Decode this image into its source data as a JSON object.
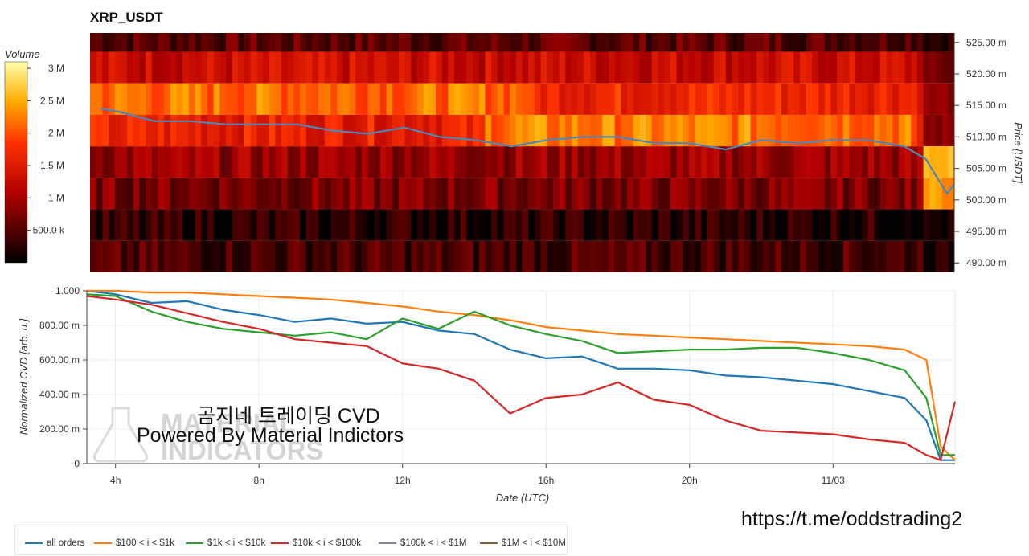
{
  "chart_data": [
    {
      "type": "heatmap",
      "title": "XRP_USDT",
      "ylabel": "Price [USDT]",
      "ylim": [
        488.5,
        526.5
      ],
      "price_ticks": [
        "525.00 m",
        "520.00 m",
        "515.00 m",
        "510.00 m",
        "505.00 m",
        "500.00 m",
        "495.00 m",
        "490.00 m"
      ],
      "price_tick_values": [
        525,
        520,
        515,
        510,
        505,
        500,
        495,
        490
      ],
      "colorbar_title": "Volume",
      "colorbar_ticks": [
        "3 M",
        "2.5 M",
        "2 M",
        "1.5 M",
        "1 M",
        "500.0 k"
      ],
      "colorbar_tick_values": [
        3000000,
        2500000,
        2000000,
        1500000,
        1000000,
        500000
      ],
      "colorbar_range": [
        0,
        3100000
      ],
      "price_bands": [
        {
          "low": 523.5,
          "high": 526.5,
          "level": 0.18
        },
        {
          "low": 518.5,
          "high": 523.5,
          "level": 0.42
        },
        {
          "low": 513.5,
          "high": 518.5,
          "level": 0.7
        },
        {
          "low": 508.5,
          "high": 513.5,
          "level": 0.52
        },
        {
          "low": 503.5,
          "high": 508.5,
          "level": 0.3
        },
        {
          "low": 498.5,
          "high": 503.5,
          "level": 0.24
        },
        {
          "low": 493.5,
          "high": 498.5,
          "level": 0.08
        },
        {
          "low": 488.5,
          "high": 493.5,
          "level": 0.14
        }
      ],
      "price_line": {
        "color": "#4f86b8",
        "x_hours": [
          3.5,
          4,
          5,
          6,
          7,
          8,
          9,
          10,
          11,
          12,
          13,
          14,
          15,
          16,
          17,
          18,
          19,
          20,
          21,
          22,
          23,
          24,
          25,
          26,
          26.6,
          27.2,
          27.4
        ],
        "y": [
          514.5,
          514.0,
          512.5,
          512.5,
          512.0,
          512.0,
          512.0,
          511.0,
          510.5,
          511.5,
          510.0,
          509.5,
          508.5,
          509.5,
          510.0,
          510.0,
          509.0,
          509.0,
          508.0,
          509.5,
          509.0,
          509.5,
          509.5,
          508.5,
          506.5,
          501.0,
          502.5
        ]
      }
    },
    {
      "type": "line",
      "xlabel": "Date (UTC)",
      "ylabel": "Normalized CVD [arb. u.]",
      "xlim": [
        3.2,
        27.4
      ],
      "ylim": [
        0,
        1
      ],
      "x_ticks": [
        "4h",
        "8h",
        "12h",
        "16h",
        "20h",
        "11/03"
      ],
      "x_tick_values": [
        4,
        8,
        12,
        16,
        20,
        24
      ],
      "y_ticks": [
        "1.000",
        "800.00 m",
        "600.00 m",
        "400.00 m",
        "200.00 m",
        "0"
      ],
      "y_tick_values": [
        1,
        0.8,
        0.6,
        0.4,
        0.2,
        0
      ],
      "series": [
        {
          "name": "all orders",
          "color": "#1f77b4",
          "x": [
            3.2,
            4,
            5,
            6,
            7,
            8,
            9,
            10,
            11,
            12,
            13,
            14,
            15,
            16,
            17,
            18,
            19,
            20,
            21,
            22,
            23,
            24,
            25,
            26,
            26.6,
            27.0,
            27.4
          ],
          "y": [
            1.0,
            0.98,
            0.93,
            0.94,
            0.89,
            0.86,
            0.82,
            0.84,
            0.81,
            0.82,
            0.77,
            0.75,
            0.66,
            0.61,
            0.62,
            0.55,
            0.55,
            0.54,
            0.51,
            0.5,
            0.48,
            0.46,
            0.42,
            0.38,
            0.25,
            0.02,
            0.02
          ]
        },
        {
          "name": "$100 < i < $1k",
          "color": "#ff7f0e",
          "x": [
            3.2,
            4,
            5,
            6,
            7,
            8,
            9,
            10,
            11,
            12,
            13,
            14,
            15,
            16,
            17,
            18,
            19,
            20,
            21,
            22,
            23,
            24,
            25,
            26,
            26.6,
            27.0,
            27.4
          ],
          "y": [
            1.0,
            1.0,
            0.99,
            0.99,
            0.98,
            0.97,
            0.96,
            0.95,
            0.93,
            0.91,
            0.88,
            0.86,
            0.83,
            0.79,
            0.77,
            0.75,
            0.74,
            0.73,
            0.72,
            0.71,
            0.7,
            0.69,
            0.68,
            0.66,
            0.6,
            0.1,
            0.02
          ]
        },
        {
          "name": "$1k < i < $10k",
          "color": "#2ca02c",
          "x": [
            3.2,
            4,
            5,
            6,
            7,
            8,
            9,
            10,
            11,
            12,
            13,
            14,
            15,
            16,
            17,
            18,
            19,
            20,
            21,
            22,
            23,
            24,
            25,
            26,
            26.6,
            27.0,
            27.4
          ],
          "y": [
            0.98,
            0.97,
            0.88,
            0.82,
            0.78,
            0.76,
            0.74,
            0.76,
            0.72,
            0.84,
            0.78,
            0.88,
            0.8,
            0.75,
            0.71,
            0.64,
            0.65,
            0.66,
            0.66,
            0.67,
            0.67,
            0.64,
            0.6,
            0.54,
            0.38,
            0.05,
            0.05
          ]
        },
        {
          "name": "$10k < i < $100k",
          "color": "#d62728",
          "x": [
            3.2,
            4,
            5,
            6,
            7,
            8,
            9,
            10,
            11,
            12,
            13,
            14,
            15,
            16,
            17,
            18,
            19,
            20,
            21,
            22,
            23,
            24,
            25,
            26,
            26.6,
            27.0,
            27.4
          ],
          "y": [
            0.97,
            0.95,
            0.92,
            0.87,
            0.82,
            0.78,
            0.72,
            0.7,
            0.68,
            0.58,
            0.55,
            0.48,
            0.29,
            0.38,
            0.4,
            0.47,
            0.37,
            0.34,
            0.25,
            0.19,
            0.18,
            0.17,
            0.14,
            0.12,
            0.05,
            0.02,
            0.36
          ]
        },
        {
          "name": "$100k < i < $1M",
          "color": "#8c7fa6",
          "x": [],
          "y": []
        },
        {
          "name": "$1M < i < $10M",
          "color": "#7f5c3a",
          "x": [],
          "y": []
        }
      ]
    }
  ],
  "overlay": {
    "title": "곰지네 트레이딩 CVD",
    "subtitle": "Powered By Material Indictors",
    "watermark_line1": "MATERIAL",
    "watermark_line2": "INDICATORS"
  },
  "footer": {
    "link": "https://t.me/oddstrading2"
  }
}
